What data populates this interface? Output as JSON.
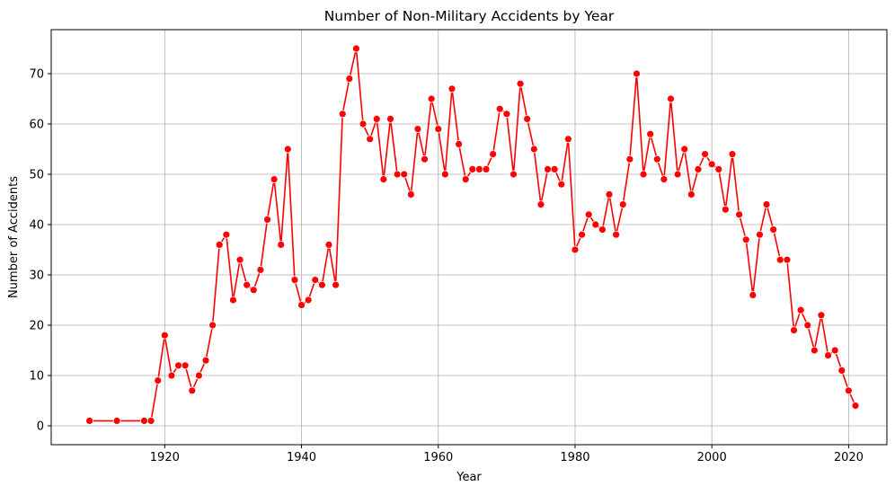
{
  "chart_data": {
    "type": "line",
    "title": "Number of Non-Military Accidents by Year",
    "xlabel": "Year",
    "ylabel": "Number of Accidents",
    "xlim": [
      1903.4,
      2025.6
    ],
    "ylim": [
      -3.75,
      78.75
    ],
    "xticks": [
      1920,
      1940,
      1960,
      1980,
      2000,
      2020
    ],
    "yticks": [
      0,
      10,
      20,
      30,
      40,
      50,
      60,
      70
    ],
    "grid": true,
    "line_color": "#ff0000",
    "marker": "circle",
    "series": [
      {
        "x": [
          1909,
          1913,
          1917,
          1918,
          1919,
          1920,
          1921,
          1922,
          1923,
          1924,
          1925,
          1926,
          1927,
          1928,
          1929,
          1930,
          1931,
          1932,
          1933,
          1934,
          1935,
          1936,
          1937,
          1938,
          1939,
          1940,
          1941,
          1942,
          1943,
          1944,
          1945,
          1946,
          1947,
          1948,
          1949,
          1950,
          1951,
          1952,
          1953,
          1954,
          1955,
          1956,
          1957,
          1958,
          1959,
          1960,
          1961,
          1962,
          1963,
          1964,
          1965,
          1966,
          1967,
          1968,
          1969,
          1970,
          1971,
          1972,
          1973,
          1974,
          1975,
          1976,
          1977,
          1978,
          1979,
          1980,
          1981,
          1982,
          1983,
          1984,
          1985,
          1986,
          1987,
          1988,
          1989,
          1990,
          1991,
          1992,
          1993,
          1994,
          1995,
          1996,
          1997,
          1998,
          1999,
          2000,
          2001,
          2002,
          2003,
          2004,
          2005,
          2006,
          2007,
          2008,
          2009,
          2010,
          2011,
          2012,
          2013,
          2014,
          2015,
          2016,
          2017,
          2018,
          2019,
          2020,
          2021
        ],
        "y": [
          1,
          1,
          1,
          1,
          9,
          18,
          10,
          12,
          12,
          7,
          10,
          13,
          20,
          36,
          38,
          25,
          33,
          28,
          27,
          31,
          41,
          49,
          36,
          55,
          29,
          24,
          25,
          29,
          28,
          36,
          28,
          62,
          69,
          75,
          60,
          57,
          61,
          49,
          61,
          50,
          50,
          46,
          59,
          53,
          65,
          59,
          50,
          67,
          56,
          49,
          51,
          51,
          51,
          54,
          63,
          62,
          50,
          68,
          61,
          55,
          44,
          51,
          51,
          48,
          57,
          35,
          38,
          42,
          40,
          39,
          46,
          38,
          44,
          53,
          70,
          50,
          58,
          53,
          49,
          65,
          50,
          55,
          46,
          51,
          54,
          52,
          51,
          43,
          54,
          42,
          37,
          26,
          38,
          44,
          39,
          33,
          33,
          19,
          23,
          20,
          15,
          22,
          14,
          15,
          11,
          7,
          4
        ]
      }
    ]
  }
}
